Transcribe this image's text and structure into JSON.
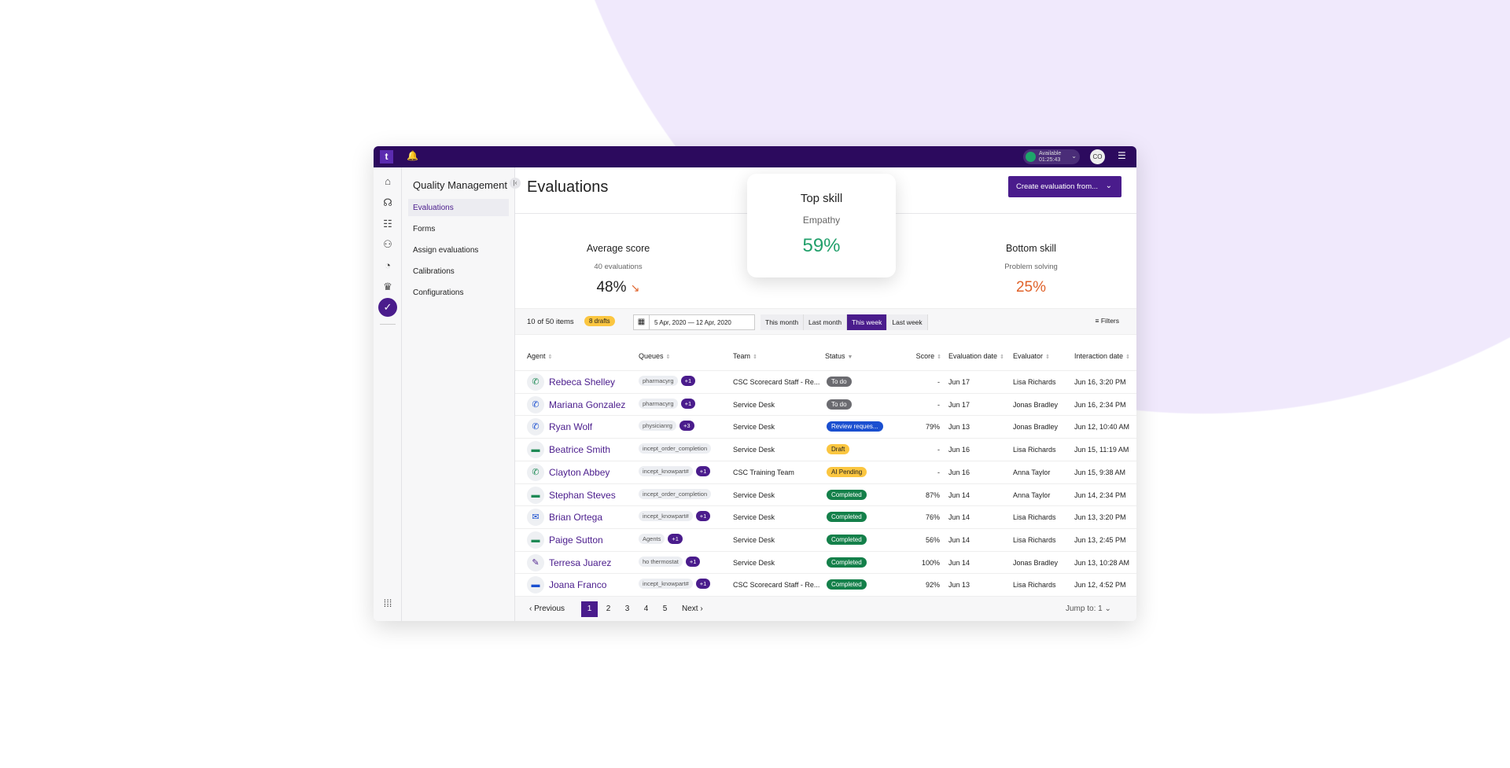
{
  "topbar": {
    "status": "Available",
    "timer": "01:25:43",
    "user_initials": "CO",
    "logo": "t"
  },
  "rail_icons": [
    "home-icon",
    "coaching-icon",
    "list-icon",
    "team-icon",
    "gauge-icon",
    "trophy-icon",
    "clipboard-check-icon",
    "apps-grid-icon"
  ],
  "sidebar": {
    "title": "Quality Management",
    "items": [
      {
        "label": "Evaluations",
        "selected": true
      },
      {
        "label": "Forms"
      },
      {
        "label": "Assign evaluations"
      },
      {
        "label": "Calibrations"
      },
      {
        "label": "Configurations"
      }
    ]
  },
  "header": {
    "title": "Evaluations",
    "create_label": "Create evaluation from..."
  },
  "stats": {
    "average": {
      "title": "Average score",
      "sub": "40 evaluations",
      "value": "48%",
      "trend": "down"
    },
    "top": {
      "title": "Top skill",
      "sub": "Empathy",
      "value": "59%",
      "color": "#22a06b"
    },
    "bottom": {
      "title": "Bottom skill",
      "sub": "Problem solving",
      "value": "25%",
      "color": "#e0622a"
    }
  },
  "toolbar": {
    "count": "10 of 50 items",
    "drafts": "8 drafts",
    "date_range": "5 Apr, 2020 — 12 Apr, 2020",
    "ranges": [
      "This month",
      "Last month",
      "This week",
      "Last week"
    ],
    "selected_range": "This week",
    "filters": "Filters"
  },
  "columns": [
    "Agent",
    "Queues",
    "Team",
    "Status",
    "Score",
    "Evaluation date",
    "Evaluator",
    "Interaction date"
  ],
  "rows": [
    {
      "icon": "phone-incoming-icon",
      "agent": "Rebeca Shelley",
      "queue": "pharmacyrg",
      "more": "+1",
      "team": "CSC Scorecard Staff - Re...",
      "status": "To do",
      "score": "-",
      "eval_date": "Jun 17",
      "evaluator": "Lisa Richards",
      "interaction": "Jun 16, 3:20 PM"
    },
    {
      "icon": "phone-outgoing-icon",
      "agent": "Mariana Gonzalez",
      "queue": "pharmacyrg",
      "more": "+1",
      "team": "Service Desk",
      "status": "To do",
      "score": "-",
      "eval_date": "Jun 17",
      "evaluator": "Jonas Bradley",
      "interaction": "Jun 16, 2:34 PM"
    },
    {
      "icon": "phone-outgoing-icon",
      "agent": "Ryan Wolf",
      "queue": "physicianrg",
      "more": "+3",
      "team": "Service Desk",
      "status": "Review reques...",
      "score": "79%",
      "eval_date": "Jun 13",
      "evaluator": "Jonas Bradley",
      "interaction": "Jun 12, 10:40 AM"
    },
    {
      "icon": "chat-icon",
      "agent": "Beatrice Smith",
      "queue": "incept_order_completion",
      "more": "",
      "team": "Service Desk",
      "status": "Draft",
      "score": "-",
      "eval_date": "Jun 16",
      "evaluator": "Lisa Richards",
      "interaction": "Jun 15, 11:19 AM"
    },
    {
      "icon": "phone-incoming-icon",
      "agent": "Clayton Abbey",
      "queue": "incept_knowpart#",
      "more": "+1",
      "team": "CSC Training Team",
      "status": "AI Pending",
      "score": "-",
      "eval_date": "Jun 16",
      "evaluator": "Anna Taylor",
      "interaction": "Jun 15, 9:38 AM"
    },
    {
      "icon": "chat-icon",
      "agent": "Stephan Steves",
      "queue": "incept_order_completion",
      "more": "",
      "team": "Service Desk",
      "status": "Completed",
      "score": "87%",
      "eval_date": "Jun 14",
      "evaluator": "Anna Taylor",
      "interaction": "Jun 14, 2:34 PM"
    },
    {
      "icon": "email-icon",
      "agent": "Brian Ortega",
      "queue": "incept_knowpart#",
      "more": "+1",
      "team": "Service Desk",
      "status": "Completed",
      "score": "76%",
      "eval_date": "Jun 14",
      "evaluator": "Lisa Richards",
      "interaction": "Jun 13, 3:20 PM"
    },
    {
      "icon": "chat-icon",
      "agent": "Paige Sutton",
      "queue": "Agents",
      "more": "+1",
      "team": "Service Desk",
      "status": "Completed",
      "score": "56%",
      "eval_date": "Jun 14",
      "evaluator": "Lisa Richards",
      "interaction": "Jun 13, 2:45 PM"
    },
    {
      "icon": "form-edit-icon",
      "agent": "Terresa Juarez",
      "queue": "ho thermostat",
      "more": "+1",
      "team": "Service Desk",
      "status": "Completed",
      "score": "100%",
      "eval_date": "Jun 14",
      "evaluator": "Jonas Bradley",
      "interaction": "Jun 13, 10:28 AM"
    },
    {
      "icon": "chat-icon",
      "agent": "Joana Franco",
      "queue": "incept_knowpart#",
      "more": "+1",
      "team": "CSC Scorecard Staff - Re...",
      "status": "Completed",
      "score": "92%",
      "eval_date": "Jun 13",
      "evaluator": "Lisa Richards",
      "interaction": "Jun 12, 4:52 PM"
    }
  ],
  "status_colors": {
    "To do": "#6b6b70",
    "Review reques...": "#1a4fd0",
    "Draft": "#fbc640",
    "AI Pending": "#fbc640",
    "Completed": "#14804a"
  },
  "pagination": {
    "previous": "Previous",
    "pages": [
      "1",
      "2",
      "3",
      "4",
      "5"
    ],
    "current": "1",
    "next": "Next",
    "jump_label": "Jump to:",
    "jump_value": "1"
  }
}
